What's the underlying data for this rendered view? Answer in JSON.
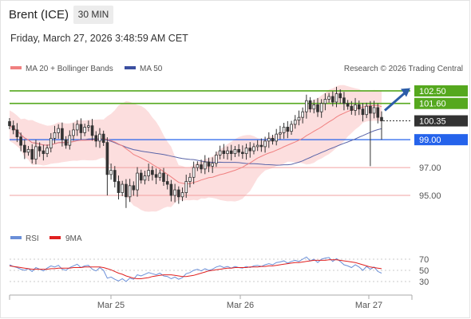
{
  "header": {
    "title": "Brent (ICE)",
    "timeframe": "30 MIN",
    "datetime": "Friday, March 27, 2026 3:48:59 AM CET"
  },
  "colors": {
    "candle_up": "#ffffff",
    "candle_down": "#333333",
    "band_fill": "#fbd3d3",
    "ma20": "#f08080",
    "ma50": "#5a64a8",
    "resistance": "#55a81e",
    "support_blue": "#2563eb",
    "support_red": "#f2a0a0",
    "last_price_tag": "#333333",
    "rsi": "#6a8fd8",
    "rsi_ma": "#e02020",
    "arrow": "#2c5da8"
  },
  "chart_data": [
    {
      "type": "candlestick",
      "legend": [
        {
          "label": "MA 20 + Bollinger Bands",
          "color": "#f08080"
        },
        {
          "label": "MA 50",
          "color": "#3b4fa0"
        }
      ],
      "copyright": "Research © 2026 Trading Central",
      "ylim": [
        93.0,
        103.3
      ],
      "y_ticks": [
        95.0,
        97.0
      ],
      "x_ticks": [
        "Mar 25",
        "Mar 26",
        "Mar 27"
      ],
      "levels": [
        {
          "value": 102.5,
          "label": "102.50",
          "style": "resistance"
        },
        {
          "value": 101.6,
          "label": "101.60",
          "style": "resistance"
        },
        {
          "value": 100.35,
          "label": "100.35",
          "style": "last"
        },
        {
          "value": 99.0,
          "label": "99.00",
          "style": "support_blue"
        },
        {
          "value": 97.0,
          "label": "97.00",
          "style": "support_red"
        },
        {
          "value": 95.0,
          "label": "95.00",
          "style": "support_red"
        }
      ],
      "close": [
        100.0,
        99.7,
        99.2,
        98.6,
        98.1,
        98.3,
        97.6,
        98.5,
        98.2,
        98.0,
        98.4,
        99.1,
        99.5,
        99.8,
        99.0,
        98.6,
        99.3,
        99.7,
        100.1,
        99.5,
        99.9,
        100.0,
        99.3,
        98.9,
        99.4,
        98.8,
        96.5,
        96.8,
        96.0,
        95.2,
        95.8,
        94.9,
        95.7,
        95.4,
        96.6,
        96.1,
        96.4,
        96.8,
        96.5,
        96.3,
        96.6,
        96.0,
        95.8,
        95.0,
        95.4,
        94.9,
        95.2,
        96.0,
        96.3,
        97.0,
        97.2,
        96.9,
        97.4,
        97.1,
        97.3,
        97.9,
        98.2,
        98.0,
        98.2,
        98.0,
        98.3,
        98.1,
        98.0,
        98.4,
        98.2,
        98.5,
        98.6,
        98.5,
        98.9,
        99.1,
        98.9,
        99.4,
        99.5,
        99.9,
        99.6,
        100.1,
        100.4,
        100.6,
        101.0,
        101.8,
        101.2,
        101.5,
        101.0,
        101.6,
        101.9,
        102.1,
        101.7,
        102.3,
        102.0,
        101.6,
        101.4,
        101.1,
        101.5,
        101.2,
        100.8,
        101.4,
        100.9,
        101.3,
        100.6,
        100.35
      ],
      "rsi": {
        "legend": [
          {
            "label": "RSI",
            "color": "#6a8fd8"
          },
          {
            "label": "9MA",
            "color": "#e02020"
          }
        ],
        "ylim": [
          20,
          80
        ],
        "y_ticks": [
          70,
          50,
          30
        ],
        "rsi_values": [
          60,
          57,
          55,
          52,
          50,
          53,
          48,
          55,
          52,
          49,
          54,
          58,
          56,
          59,
          52,
          50,
          55,
          58,
          61,
          55,
          58,
          59,
          52,
          49,
          55,
          50,
          36,
          38,
          34,
          31,
          35,
          30,
          36,
          34,
          42,
          40,
          43,
          46,
          44,
          42,
          45,
          40,
          39,
          35,
          38,
          34,
          37,
          44,
          46,
          50,
          52,
          49,
          53,
          50,
          52,
          56,
          58,
          55,
          57,
          54,
          57,
          55,
          54,
          57,
          55,
          58,
          59,
          57,
          60,
          62,
          60,
          64,
          65,
          67,
          63,
          66,
          68,
          66,
          70,
          74,
          67,
          70,
          64,
          70,
          72,
          73,
          66,
          71,
          66,
          60,
          58,
          55,
          60,
          56,
          50,
          57,
          52,
          56,
          48,
          45
        ],
        "ma_values": [
          58,
          57,
          56,
          55,
          54,
          53,
          52,
          52,
          52,
          52,
          52,
          53,
          53,
          54,
          54,
          54,
          54,
          55,
          55,
          55,
          56,
          56,
          56,
          56,
          56,
          55,
          53,
          51,
          48,
          45,
          43,
          40,
          38,
          36,
          35,
          35,
          36,
          37,
          39,
          40,
          41,
          42,
          42,
          42,
          41,
          40,
          39,
          39,
          40,
          41,
          43,
          45,
          47,
          49,
          50,
          51,
          52,
          53,
          54,
          54,
          55,
          55,
          55,
          55,
          56,
          56,
          56,
          57,
          57,
          58,
          58,
          59,
          60,
          61,
          62,
          63,
          64,
          64,
          65,
          66,
          67,
          68,
          68,
          68,
          68,
          69,
          69,
          69,
          68,
          67,
          66,
          65,
          64,
          62,
          60,
          58,
          56,
          55,
          54,
          53
        ]
      }
    }
  ]
}
